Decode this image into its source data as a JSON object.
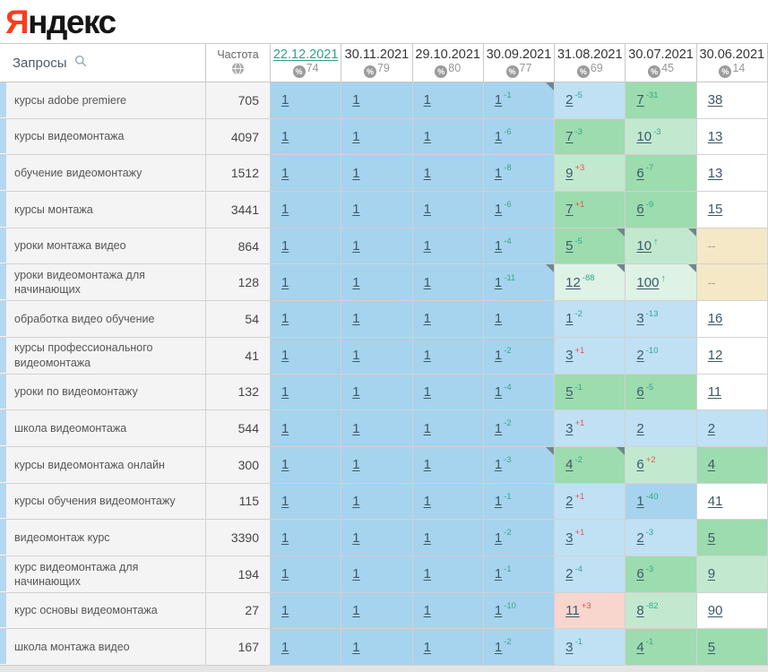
{
  "logo": {
    "ya": "Я",
    "rest": "ндекс"
  },
  "header": {
    "queries_label": "Запросы",
    "frequency_label": "Частота"
  },
  "colors": {
    "logo_red": "#fc3b1e",
    "accent_teal": "#2fa38f",
    "sup_improve": "#2fa98c",
    "sup_decline": "#e2564a",
    "position_link": "#3c5a68",
    "cell_blue": "#a6d3ee",
    "cell_blue_light": "#c0e0f4",
    "cell_green": "#9cdcae",
    "cell_green_light": "#c2e9cf",
    "cell_green_pale": "#def2e6",
    "cell_cream": "#f5e8c6",
    "cell_pink": "#f8d5cd",
    "row_bar_blue": "#b5d8f1"
  },
  "date_columns": [
    {
      "date": "22.12.2021",
      "visibility": "74",
      "active": true
    },
    {
      "date": "30.11.2021",
      "visibility": "79",
      "active": false
    },
    {
      "date": "29.10.2021",
      "visibility": "80",
      "active": false
    },
    {
      "date": "30.09.2021",
      "visibility": "77",
      "active": false
    },
    {
      "date": "31.08.2021",
      "visibility": "69",
      "active": false
    },
    {
      "date": "30.07.2021",
      "visibility": "45",
      "active": false
    },
    {
      "date": "30.06.2021",
      "visibility": "14",
      "active": false
    }
  ],
  "rows": [
    {
      "query": "курсы adobe premiere",
      "frequency": "705",
      "cells": [
        {
          "pos": "1",
          "bg": "b1"
        },
        {
          "pos": "1",
          "bg": "b1"
        },
        {
          "pos": "1",
          "bg": "b1"
        },
        {
          "pos": "1",
          "bg": "b1",
          "sup": "-1",
          "trend": "up",
          "note": true
        },
        {
          "pos": "2",
          "bg": "b2",
          "sup": "-5",
          "trend": "up"
        },
        {
          "pos": "7",
          "bg": "g1",
          "sup": "-31",
          "trend": "up"
        },
        {
          "pos": "38",
          "bg": "w"
        }
      ]
    },
    {
      "query": "курсы видеомонтажа",
      "frequency": "4097",
      "cells": [
        {
          "pos": "1",
          "bg": "b1"
        },
        {
          "pos": "1",
          "bg": "b1"
        },
        {
          "pos": "1",
          "bg": "b1"
        },
        {
          "pos": "1",
          "bg": "b1",
          "sup": "-6",
          "trend": "up"
        },
        {
          "pos": "7",
          "bg": "g1",
          "sup": "-3",
          "trend": "up"
        },
        {
          "pos": "10",
          "bg": "g2",
          "sup": "-3",
          "trend": "up"
        },
        {
          "pos": "13",
          "bg": "w"
        }
      ]
    },
    {
      "query": "обучение видеомонтажу",
      "frequency": "1512",
      "cells": [
        {
          "pos": "1",
          "bg": "b1"
        },
        {
          "pos": "1",
          "bg": "b1"
        },
        {
          "pos": "1",
          "bg": "b1"
        },
        {
          "pos": "1",
          "bg": "b1",
          "sup": "-8",
          "trend": "up"
        },
        {
          "pos": "9",
          "bg": "g2",
          "sup": "+3",
          "trend": "down"
        },
        {
          "pos": "6",
          "bg": "g1",
          "sup": "-7",
          "trend": "up"
        },
        {
          "pos": "13",
          "bg": "w"
        }
      ]
    },
    {
      "query": "курсы монтажа",
      "frequency": "3441",
      "cells": [
        {
          "pos": "1",
          "bg": "b1"
        },
        {
          "pos": "1",
          "bg": "b1"
        },
        {
          "pos": "1",
          "bg": "b1"
        },
        {
          "pos": "1",
          "bg": "b1",
          "sup": "-6",
          "trend": "up"
        },
        {
          "pos": "7",
          "bg": "g1",
          "sup": "+1",
          "trend": "down"
        },
        {
          "pos": "6",
          "bg": "g1",
          "sup": "-9",
          "trend": "up"
        },
        {
          "pos": "15",
          "bg": "w"
        }
      ]
    },
    {
      "query": "уроки монтажа видео",
      "frequency": "864",
      "cells": [
        {
          "pos": "1",
          "bg": "b1"
        },
        {
          "pos": "1",
          "bg": "b1"
        },
        {
          "pos": "1",
          "bg": "b1"
        },
        {
          "pos": "1",
          "bg": "b1",
          "sup": "-4",
          "trend": "up"
        },
        {
          "pos": "5",
          "bg": "g1",
          "sup": "-5",
          "trend": "up",
          "note": true
        },
        {
          "pos": "10",
          "bg": "g2",
          "new": true,
          "note": true
        },
        {
          "pos": "--",
          "bg": "tan"
        }
      ]
    },
    {
      "query": "уроки видеомонтажа для начинающих",
      "frequency": "128",
      "cells": [
        {
          "pos": "1",
          "bg": "b1"
        },
        {
          "pos": "1",
          "bg": "b1"
        },
        {
          "pos": "1",
          "bg": "b1"
        },
        {
          "pos": "1",
          "bg": "b1",
          "sup": "-11",
          "trend": "up",
          "note": true
        },
        {
          "pos": "12",
          "bg": "g3",
          "sup": "-88",
          "trend": "up",
          "note": true
        },
        {
          "pos": "100",
          "bg": "g3",
          "new": true,
          "note": true
        },
        {
          "pos": "--",
          "bg": "tan"
        }
      ]
    },
    {
      "query": "обработка видео обучение",
      "frequency": "54",
      "cells": [
        {
          "pos": "1",
          "bg": "b1"
        },
        {
          "pos": "1",
          "bg": "b1"
        },
        {
          "pos": "1",
          "bg": "b1"
        },
        {
          "pos": "1",
          "bg": "b1"
        },
        {
          "pos": "1",
          "bg": "b2",
          "sup": "-2",
          "trend": "up"
        },
        {
          "pos": "3",
          "bg": "b2",
          "sup": "-13",
          "trend": "up"
        },
        {
          "pos": "16",
          "bg": "w"
        }
      ]
    },
    {
      "query": "курсы профессионального видеомонтажа",
      "frequency": "41",
      "cells": [
        {
          "pos": "1",
          "bg": "b1"
        },
        {
          "pos": "1",
          "bg": "b1"
        },
        {
          "pos": "1",
          "bg": "b1"
        },
        {
          "pos": "1",
          "bg": "b1",
          "sup": "-2",
          "trend": "up"
        },
        {
          "pos": "3",
          "bg": "b2",
          "sup": "+1",
          "trend": "down"
        },
        {
          "pos": "2",
          "bg": "b2",
          "sup": "-10",
          "trend": "up"
        },
        {
          "pos": "12",
          "bg": "w"
        }
      ]
    },
    {
      "query": "уроки по видеомонтажу",
      "frequency": "132",
      "cells": [
        {
          "pos": "1",
          "bg": "b1"
        },
        {
          "pos": "1",
          "bg": "b1"
        },
        {
          "pos": "1",
          "bg": "b1"
        },
        {
          "pos": "1",
          "bg": "b1",
          "sup": "-4",
          "trend": "up"
        },
        {
          "pos": "5",
          "bg": "g1",
          "sup": "-1",
          "trend": "up"
        },
        {
          "pos": "6",
          "bg": "g1",
          "sup": "-5",
          "trend": "up"
        },
        {
          "pos": "11",
          "bg": "w"
        }
      ]
    },
    {
      "query": "школа видеомонтажа",
      "frequency": "544",
      "cells": [
        {
          "pos": "1",
          "bg": "b1"
        },
        {
          "pos": "1",
          "bg": "b1"
        },
        {
          "pos": "1",
          "bg": "b1"
        },
        {
          "pos": "1",
          "bg": "b1",
          "sup": "-2",
          "trend": "up"
        },
        {
          "pos": "3",
          "bg": "b2",
          "sup": "+1",
          "trend": "down"
        },
        {
          "pos": "2",
          "bg": "b2"
        },
        {
          "pos": "2",
          "bg": "b2"
        }
      ]
    },
    {
      "query": "курсы видеомонтажа онлайн",
      "frequency": "300",
      "cells": [
        {
          "pos": "1",
          "bg": "b1"
        },
        {
          "pos": "1",
          "bg": "b1"
        },
        {
          "pos": "1",
          "bg": "b1"
        },
        {
          "pos": "1",
          "bg": "b1",
          "sup": "-3",
          "trend": "up",
          "note": true
        },
        {
          "pos": "4",
          "bg": "g1",
          "sup": "-2",
          "trend": "up",
          "note": true
        },
        {
          "pos": "6",
          "bg": "g2",
          "sup": "+2",
          "trend": "down"
        },
        {
          "pos": "4",
          "bg": "g1"
        }
      ]
    },
    {
      "query": "курсы обучения видеомонтажу",
      "frequency": "115",
      "cells": [
        {
          "pos": "1",
          "bg": "b1"
        },
        {
          "pos": "1",
          "bg": "b1"
        },
        {
          "pos": "1",
          "bg": "b1"
        },
        {
          "pos": "1",
          "bg": "b1",
          "sup": "-1",
          "trend": "up"
        },
        {
          "pos": "2",
          "bg": "b2",
          "sup": "+1",
          "trend": "down"
        },
        {
          "pos": "1",
          "bg": "b1",
          "sup": "-40",
          "trend": "up"
        },
        {
          "pos": "41",
          "bg": "w"
        }
      ]
    },
    {
      "query": "видеомонтаж курс",
      "frequency": "3390",
      "cells": [
        {
          "pos": "1",
          "bg": "b1"
        },
        {
          "pos": "1",
          "bg": "b1"
        },
        {
          "pos": "1",
          "bg": "b1"
        },
        {
          "pos": "1",
          "bg": "b1",
          "sup": "-2",
          "trend": "up"
        },
        {
          "pos": "3",
          "bg": "b2",
          "sup": "+1",
          "trend": "down"
        },
        {
          "pos": "2",
          "bg": "b2",
          "sup": "-3",
          "trend": "up"
        },
        {
          "pos": "5",
          "bg": "g1"
        }
      ]
    },
    {
      "query": "курс видеомонтажа для начинающих",
      "frequency": "194",
      "cells": [
        {
          "pos": "1",
          "bg": "b1"
        },
        {
          "pos": "1",
          "bg": "b1"
        },
        {
          "pos": "1",
          "bg": "b1"
        },
        {
          "pos": "1",
          "bg": "b1",
          "sup": "-1",
          "trend": "up"
        },
        {
          "pos": "2",
          "bg": "b2",
          "sup": "-4",
          "trend": "up"
        },
        {
          "pos": "6",
          "bg": "g1",
          "sup": "-3",
          "trend": "up"
        },
        {
          "pos": "9",
          "bg": "g2"
        }
      ]
    },
    {
      "query": "курс основы видеомонтажа",
      "frequency": "27",
      "cells": [
        {
          "pos": "1",
          "bg": "b1"
        },
        {
          "pos": "1",
          "bg": "b1"
        },
        {
          "pos": "1",
          "bg": "b1"
        },
        {
          "pos": "1",
          "bg": "b1",
          "sup": "-10",
          "trend": "up"
        },
        {
          "pos": "11",
          "bg": "pink",
          "sup": "+3",
          "trend": "down"
        },
        {
          "pos": "8",
          "bg": "g2",
          "sup": "-82",
          "trend": "up"
        },
        {
          "pos": "90",
          "bg": "w"
        }
      ]
    },
    {
      "query": "школа монтажа видео",
      "frequency": "167",
      "cells": [
        {
          "pos": "1",
          "bg": "b1"
        },
        {
          "pos": "1",
          "bg": "b1"
        },
        {
          "pos": "1",
          "bg": "b1"
        },
        {
          "pos": "1",
          "bg": "b1",
          "sup": "-2",
          "trend": "up"
        },
        {
          "pos": "3",
          "bg": "b2",
          "sup": "-1",
          "trend": "up"
        },
        {
          "pos": "4",
          "bg": "g1",
          "sup": "-1",
          "trend": "up"
        },
        {
          "pos": "5",
          "bg": "g1"
        }
      ]
    }
  ]
}
